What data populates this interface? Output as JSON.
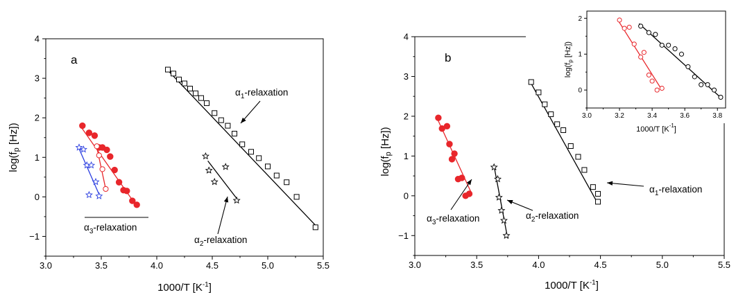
{
  "colors": {
    "black": "#000000",
    "red": "#e8262b",
    "blue": "#2a3de0"
  },
  "chart_data": [
    {
      "type": "scatter",
      "panel_label": "a",
      "xlabel": "1000/T [K",
      "xlabel_sup": "-1",
      "xlabel_end": "]",
      "ylabel": "log(f",
      "ylabel_sub": "p",
      "ylabel_end": " [Hz])",
      "xlim": [
        3.0,
        5.5
      ],
      "ylim": [
        -1.5,
        4.0
      ],
      "xticks": [
        "3.0",
        "3.5",
        "4.0",
        "4.5",
        "5.0",
        "5.5"
      ],
      "yticks": [
        "−1",
        "0",
        "1",
        "2",
        "3",
        "4"
      ],
      "annotations": [
        {
          "prefix": "α",
          "sub": "1",
          "suffix": "-relaxation"
        },
        {
          "prefix": "α",
          "sub": "2",
          "suffix": "-relaxation"
        },
        {
          "prefix": "α",
          "sub": "3",
          "suffix": "-relaxation"
        }
      ],
      "series": [
        {
          "marker": "open-square",
          "color": "#000000",
          "x": [
            4.1,
            4.15,
            4.2,
            4.25,
            4.3,
            4.35,
            4.4,
            4.45,
            4.52,
            4.58,
            4.64,
            4.7,
            4.77,
            4.85,
            4.92,
            5.0,
            5.08,
            5.17,
            5.26,
            5.43
          ],
          "y": [
            3.22,
            3.12,
            2.97,
            2.87,
            2.74,
            2.62,
            2.5,
            2.37,
            2.12,
            1.94,
            1.8,
            1.6,
            1.33,
            1.14,
            0.98,
            0.77,
            0.54,
            0.37,
            0.0,
            -0.77
          ],
          "fit": [
            [
              4.09,
              3.23
            ],
            [
              5.43,
              -0.72
            ]
          ]
        },
        {
          "marker": "open-star",
          "color": "#000000",
          "x": [
            4.44,
            4.47,
            4.52,
            4.62,
            4.72
          ],
          "y": [
            1.03,
            0.67,
            0.38,
            0.76,
            -0.09
          ],
          "fit": [
            [
              4.46,
              0.91
            ],
            [
              4.72,
              -0.04
            ]
          ]
        },
        {
          "marker": "filled-circle",
          "color": "#e8262b",
          "x": [
            3.33,
            3.39,
            3.44,
            3.48,
            3.51,
            3.55,
            3.58,
            3.62,
            3.66,
            3.7,
            3.73,
            3.78,
            3.82
          ],
          "y": [
            1.8,
            1.62,
            1.55,
            1.25,
            1.25,
            1.19,
            1.02,
            0.68,
            0.37,
            0.17,
            0.15,
            -0.1,
            -0.2
          ],
          "fit": [
            [
              3.31,
              1.8
            ],
            [
              3.81,
              -0.2
            ]
          ]
        },
        {
          "marker": "open-circle",
          "color": "#e8262b",
          "x": [
            3.46,
            3.48,
            3.51,
            3.54
          ],
          "y": [
            1.28,
            1.05,
            0.7,
            0.2
          ],
          "fit": [
            [
              3.46,
              1.25
            ],
            [
              3.54,
              0.2
            ]
          ]
        },
        {
          "marker": "open-star",
          "color": "#2a3de0",
          "x": [
            3.3,
            3.34,
            3.37,
            3.41,
            3.45,
            3.39,
            3.48
          ],
          "y": [
            1.25,
            1.2,
            0.8,
            0.8,
            0.38,
            0.05,
            0.02
          ],
          "fit": [
            [
              3.29,
              1.28
            ],
            [
              3.49,
              0.0
            ]
          ]
        }
      ]
    },
    {
      "type": "scatter",
      "panel_label": "b",
      "xlabel": "1000/T [K",
      "xlabel_sup": "-1",
      "xlabel_end": "]",
      "ylabel": "log(f",
      "ylabel_sub": "p",
      "ylabel_end": " [Hz])",
      "xlim": [
        3.0,
        5.5
      ],
      "ylim": [
        -1.5,
        4.0
      ],
      "xticks": [
        "3.0",
        "3.5",
        "4.0",
        "4.5",
        "5.0",
        "5.5"
      ],
      "yticks": [
        "−1",
        "0",
        "1",
        "2",
        "3",
        "4"
      ],
      "annotations": [
        {
          "prefix": "α",
          "sub": "1",
          "suffix": "-relaxation"
        },
        {
          "prefix": "α",
          "sub": "2",
          "suffix": "-relaxation"
        },
        {
          "prefix": "α",
          "sub": "3",
          "suffix": "-relaxation"
        }
      ],
      "series": [
        {
          "marker": "open-square",
          "color": "#000000",
          "x": [
            3.94,
            4.0,
            4.05,
            4.1,
            4.15,
            4.2,
            4.26,
            4.32,
            4.37,
            4.44,
            4.48,
            4.48
          ],
          "y": [
            2.86,
            2.6,
            2.3,
            2.05,
            1.8,
            1.65,
            1.25,
            0.98,
            0.65,
            0.22,
            0.05,
            -0.15
          ],
          "fit": [
            [
              3.93,
              2.88
            ],
            [
              4.48,
              -0.2
            ]
          ]
        },
        {
          "marker": "open-star",
          "color": "#000000",
          "x": [
            3.64,
            3.67,
            3.68,
            3.7,
            3.72,
            3.74
          ],
          "y": [
            0.72,
            0.42,
            -0.04,
            -0.37,
            -0.62,
            -1.0
          ],
          "fit": [
            [
              3.64,
              0.75
            ],
            [
              3.75,
              -1.07
            ]
          ]
        },
        {
          "marker": "filled-circle",
          "color": "#e8262b",
          "x": [
            3.19,
            3.22,
            3.26,
            3.28,
            3.3,
            3.32,
            3.35,
            3.38,
            3.41,
            3.44
          ],
          "y": [
            1.96,
            1.69,
            1.75,
            1.3,
            0.92,
            1.06,
            0.42,
            0.45,
            0.0,
            0.05
          ],
          "fit": [
            [
              3.18,
              1.95
            ],
            [
              3.46,
              0.05
            ]
          ]
        }
      ]
    },
    {
      "type": "scatter",
      "panel_label": "",
      "xlabel": "1000/T [K",
      "xlabel_sup": "-1",
      "xlabel_end": "]",
      "ylabel": "log(f",
      "ylabel_sub": "p",
      "ylabel_end": " [Hz])",
      "xlim": [
        3.0,
        3.85
      ],
      "ylim": [
        -0.5,
        2.2
      ],
      "xticks": [
        "3.0",
        "3.2",
        "3.4",
        "3.6",
        "3.8"
      ],
      "yticks": [
        "0",
        "1",
        "2"
      ],
      "series": [
        {
          "marker": "open-circle",
          "color": "#e8262b",
          "x": [
            3.2,
            3.23,
            3.26,
            3.29,
            3.33,
            3.35,
            3.38,
            3.4,
            3.43,
            3.46
          ],
          "y": [
            1.95,
            1.72,
            1.75,
            1.28,
            0.92,
            1.05,
            0.42,
            0.25,
            0.0,
            0.05
          ],
          "fit": [
            [
              3.19,
              1.95
            ],
            [
              3.46,
              0.0
            ]
          ]
        },
        {
          "marker": "open-circle",
          "color": "#000000",
          "x": [
            3.33,
            3.38,
            3.42,
            3.46,
            3.5,
            3.54,
            3.58,
            3.62,
            3.66,
            3.7,
            3.74,
            3.78,
            3.82
          ],
          "y": [
            1.78,
            1.6,
            1.55,
            1.25,
            1.25,
            1.15,
            1.0,
            0.65,
            0.37,
            0.15,
            0.15,
            0.0,
            -0.2
          ],
          "fit": [
            [
              3.32,
              1.85
            ],
            [
              3.83,
              -0.25
            ]
          ]
        }
      ]
    }
  ]
}
